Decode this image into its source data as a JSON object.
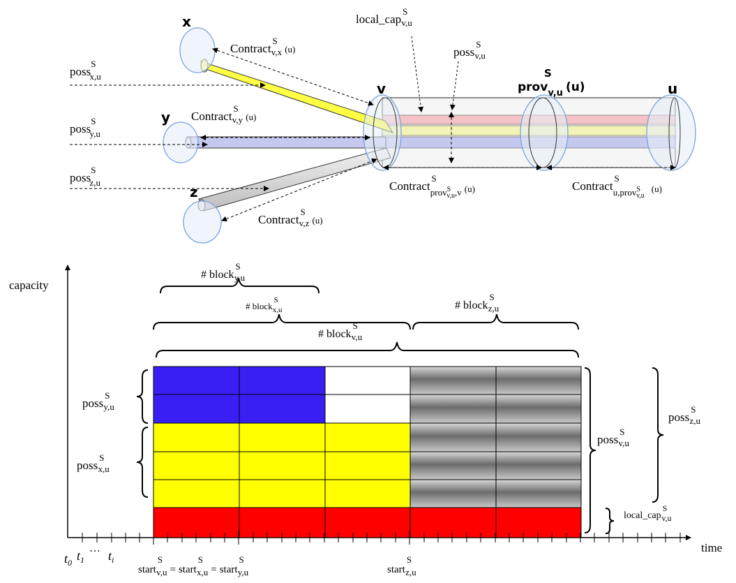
{
  "colors": {
    "yellow": "#ffff00",
    "blue": "#3a1ff5",
    "red": "#ff0000",
    "pipe_blue": "#c5c9ef",
    "pipe_pink": "#f3c3c5",
    "pipe_yellow": "#f3f3b8",
    "node_fill": "#e6eef8",
    "node_stroke": "#7aa3da"
  },
  "nodes": {
    "x": "x",
    "y": "y",
    "z": "z",
    "v": "v",
    "u": "u",
    "prov": "prov",
    "prov_sub": "v,u",
    "prov_suffix": "(u)"
  },
  "labels": {
    "poss": "poss",
    "contract": "Contract",
    "local_cap": "local_cap",
    "block": "# block",
    "start": "start",
    "eq": "=",
    "sup_s": "S",
    "u_arg": "(u)",
    "xu": "x,u",
    "yu": "y,u",
    "zu": "z,u",
    "vu": "v,u",
    "vx": "v,x",
    "vy": "v,y",
    "vz": "v,z",
    "prov_v_pre": "prov",
    "prov_v_post": ",v",
    "u_prov_pre": "u,prov"
  },
  "axes": {
    "y_label": "capacity",
    "x_label": "time",
    "t0": "t",
    "t0_sub": "0",
    "t1_sub": "1",
    "ti_sub": "i",
    "dots": "…"
  }
}
